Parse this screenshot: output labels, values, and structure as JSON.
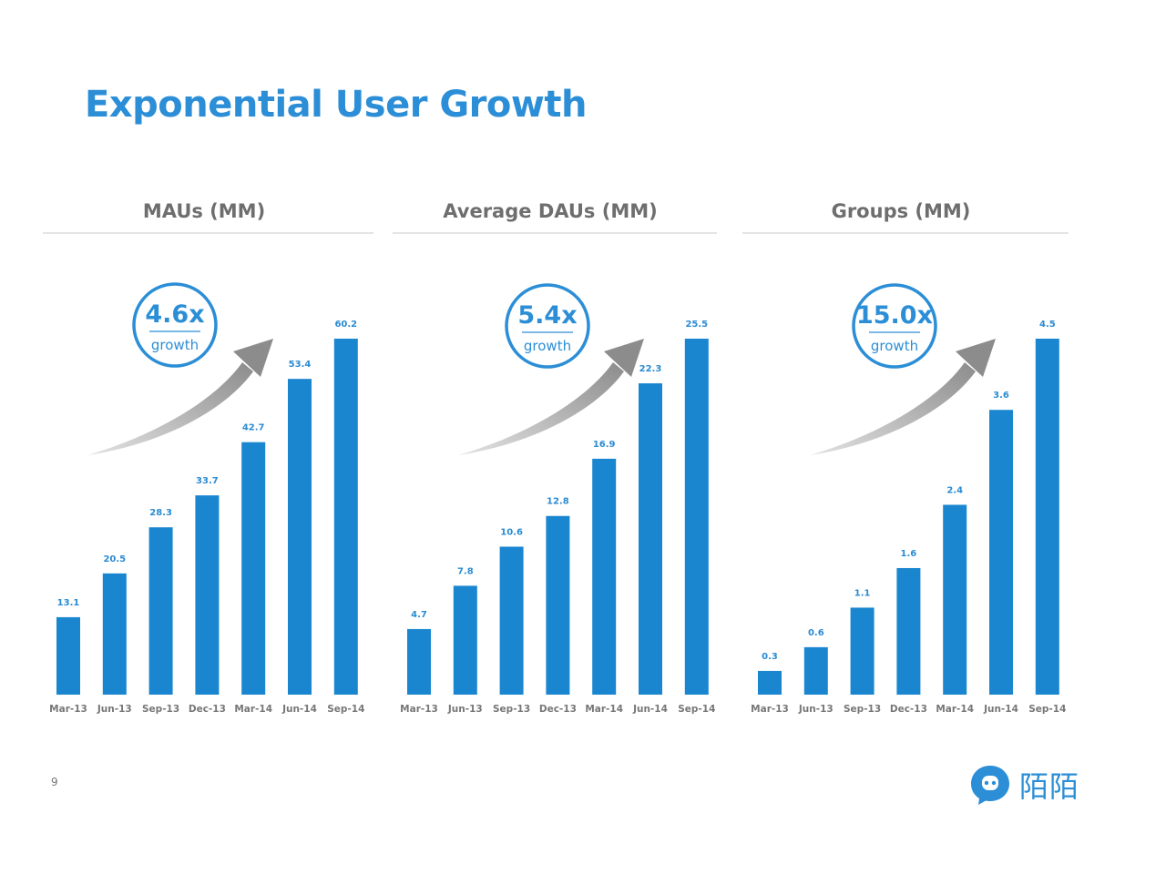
{
  "title": "Exponential User Growth",
  "page_number": "9",
  "logo": {
    "text": "陌陌",
    "icon": "momo-chat-bubble-icon"
  },
  "colors": {
    "bar": "#1a86d0",
    "accent": "#2b8ed6",
    "arrow": "#999999"
  },
  "chart_data": [
    {
      "type": "bar",
      "title": "MAUs (MM)",
      "categories": [
        "Mar-13",
        "Jun-13",
        "Sep-13",
        "Dec-13",
        "Mar-14",
        "Jun-14",
        "Sep-14"
      ],
      "values": [
        13.1,
        20.5,
        28.3,
        33.7,
        42.7,
        53.4,
        60.2
      ],
      "value_labels": [
        "13.1",
        "20.5",
        "28.3",
        "33.7",
        "42.7",
        "53.4",
        "60.2"
      ],
      "growth": {
        "value": "4.6x",
        "label": "growth"
      },
      "grid": false
    },
    {
      "type": "bar",
      "title": "Average DAUs (MM)",
      "categories": [
        "Mar-13",
        "Jun-13",
        "Sep-13",
        "Dec-13",
        "Mar-14",
        "Jun-14",
        "Sep-14"
      ],
      "values": [
        4.7,
        7.8,
        10.6,
        12.8,
        16.9,
        22.3,
        25.5
      ],
      "value_labels": [
        "4.7",
        "7.8",
        "10.6",
        "12.8",
        "16.9",
        "22.3",
        "25.5"
      ],
      "growth": {
        "value": "5.4x",
        "label": "growth"
      },
      "grid": false
    },
    {
      "type": "bar",
      "title": "Groups (MM)",
      "categories": [
        "Mar-13",
        "Jun-13",
        "Sep-13",
        "Dec-13",
        "Mar-14",
        "Jun-14",
        "Sep-14"
      ],
      "values": [
        0.3,
        0.6,
        1.1,
        1.6,
        2.4,
        3.6,
        4.5
      ],
      "value_labels": [
        "0.3",
        "0.6",
        "1.1",
        "1.6",
        "2.4",
        "3.6",
        "4.5"
      ],
      "growth": {
        "value": "15.0x",
        "label": "growth"
      },
      "grid": false
    }
  ]
}
